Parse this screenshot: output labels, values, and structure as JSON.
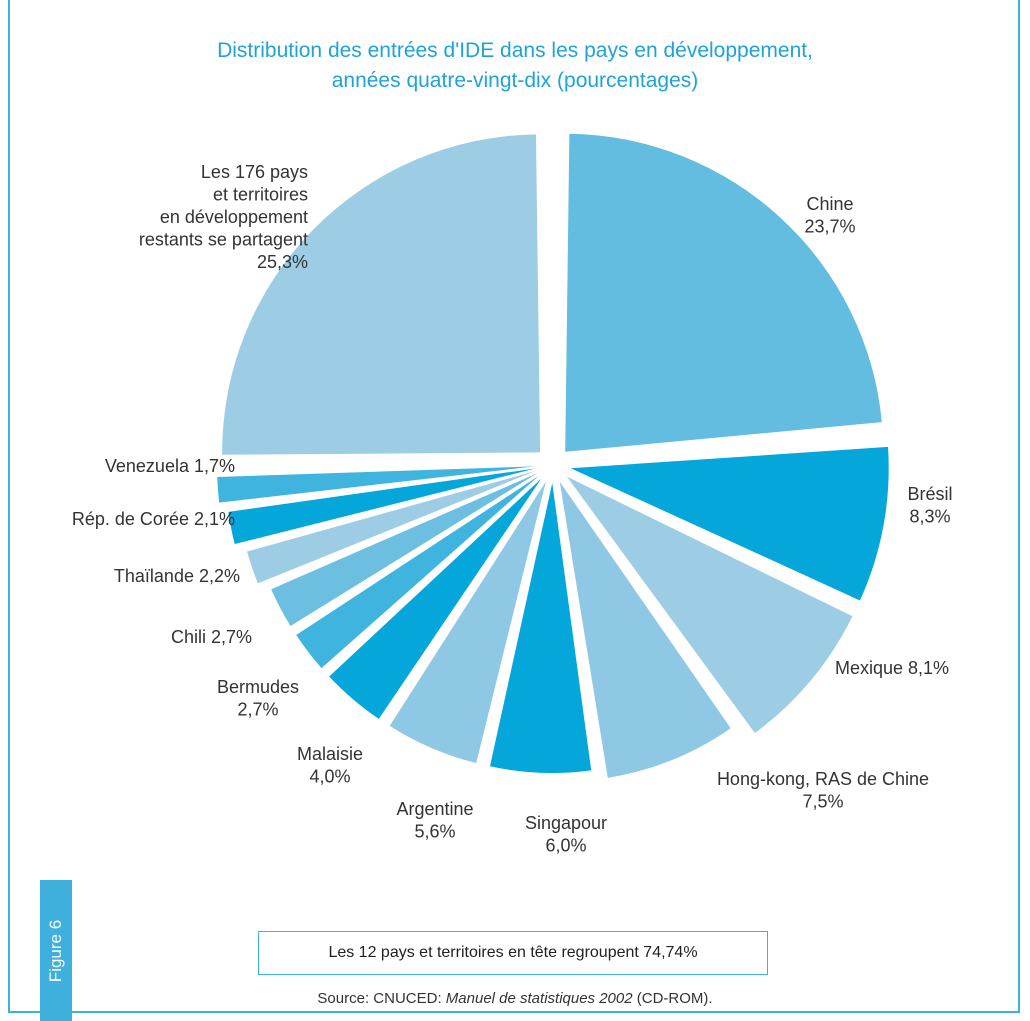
{
  "chart_data": {
    "type": "pie",
    "title_lines": [
      "Distribution des entrées d'IDE dans les pays en développement,",
      "années quatre-vingt-dix (pourcentages)"
    ],
    "slices": [
      {
        "name": "Chine",
        "value": 23.7,
        "label_lines": [
          "Chine",
          "23,7%"
        ],
        "color": "#63bde0"
      },
      {
        "name": "Brésil",
        "value": 8.3,
        "label_lines": [
          "Brésil",
          "8,3%"
        ],
        "color": "#05a6da"
      },
      {
        "name": "Mexique",
        "value": 8.1,
        "label_lines": [
          "Mexique 8,1%"
        ],
        "color": "#9dcde5"
      },
      {
        "name": "Hong-kong, RAS de Chine",
        "value": 7.5,
        "label_lines": [
          "Hong-kong, RAS de Chine",
          "7,5%"
        ],
        "color": "#8ec8e4"
      },
      {
        "name": "Singapour",
        "value": 6.0,
        "label_lines": [
          "Singapour",
          "6,0%"
        ],
        "color": "#05a6da"
      },
      {
        "name": "Argentine",
        "value": 5.6,
        "label_lines": [
          "Argentine",
          "5,6%"
        ],
        "color": "#8ec8e4"
      },
      {
        "name": "Malaisie",
        "value": 4.0,
        "label_lines": [
          "Malaisie",
          "4,0%"
        ],
        "color": "#05a6da"
      },
      {
        "name": "Bermudes",
        "value": 2.7,
        "label_lines": [
          "Bermudes",
          "2,7%"
        ],
        "color": "#3fb4df"
      },
      {
        "name": "Chili",
        "value": 2.7,
        "label_lines": [
          "Chili 2,7%"
        ],
        "color": "#6cbfe0"
      },
      {
        "name": "Thaïlande",
        "value": 2.2,
        "label_lines": [
          "Thaïlande 2,2%"
        ],
        "color": "#9dcde5"
      },
      {
        "name": "Rép. de Corée",
        "value": 2.1,
        "label_lines": [
          "Rép. de Corée 2,1%"
        ],
        "color": "#05a6da"
      },
      {
        "name": "Venezuela",
        "value": 1.7,
        "label_lines": [
          "Venezuela 1,7%"
        ],
        "color": "#3fb4df"
      },
      {
        "name": "Les 176 pays et territoires en développement restants se partagent",
        "value": 25.3,
        "label_lines": [
          "Les 176 pays",
          "et territoires",
          "en développement",
          "restants se partagent",
          "25,3%"
        ],
        "color": "#9dcde5"
      }
    ]
  },
  "figure_tab": "Figure 6",
  "summary_box": "Les 12 pays et territoires en tête regroupent 74,74%",
  "source": {
    "prefix": "Source: CNUCED: ",
    "italic": "Manuel de statistiques 2002",
    "suffix": " (CD-ROM)."
  }
}
